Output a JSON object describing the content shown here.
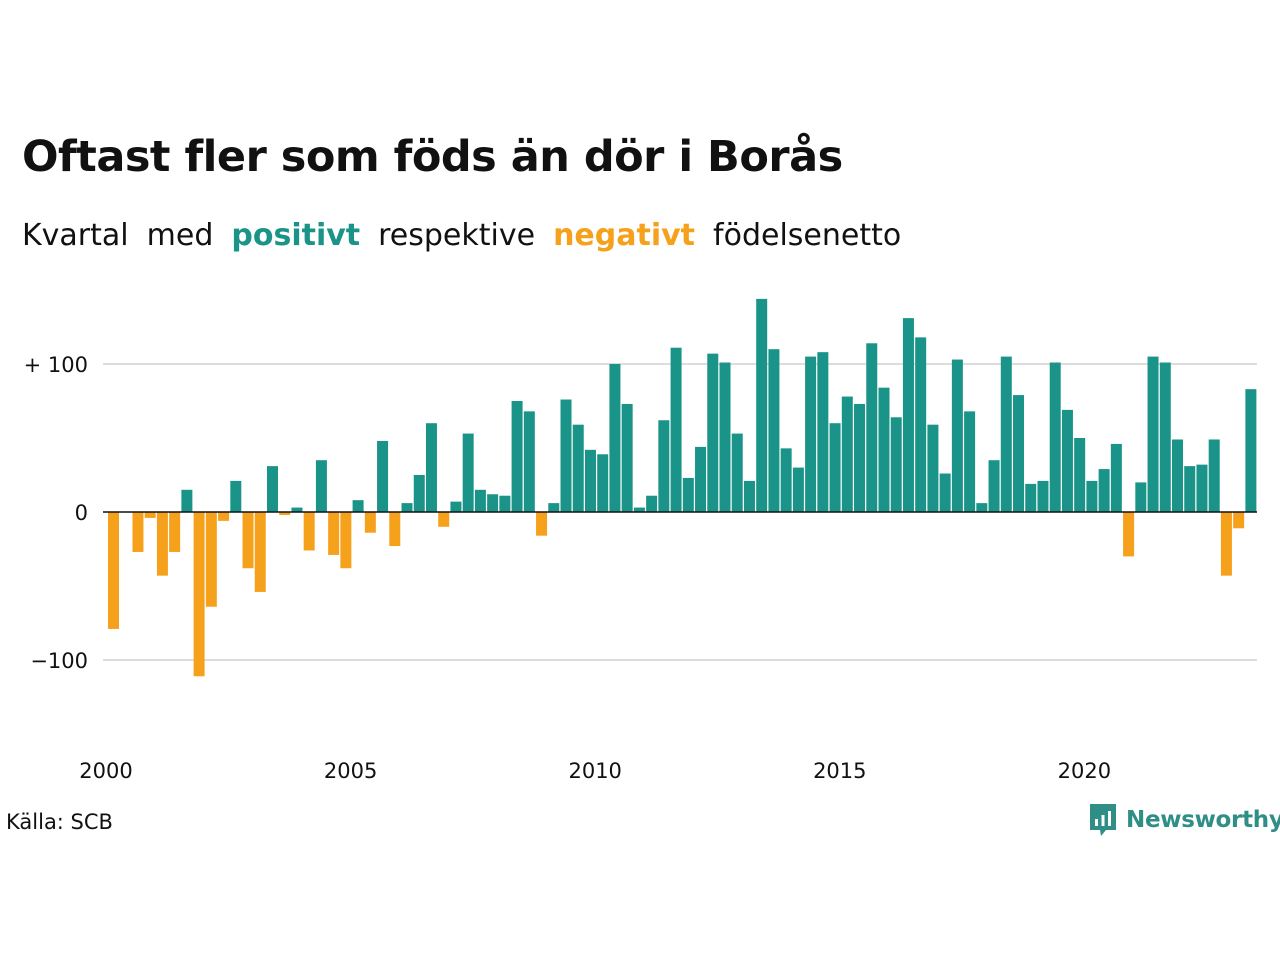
{
  "title": "Oftast fler som föds än dör i Borås",
  "subtitle": {
    "w1": "Kvartal",
    "w2": "med",
    "positive": "positivt",
    "w3": "respektive",
    "negative": "negativt",
    "w4": "födelsenetto"
  },
  "source": "Källa: SCB",
  "brand": "Newsworthy",
  "colors": {
    "positive": "#1a9488",
    "negative": "#f5a11c",
    "grid": "#dddddd",
    "baseline": "#111111"
  },
  "chart_data": {
    "type": "bar",
    "title": "Oftast fler som föds än dör i Borås",
    "xlabel": "",
    "ylabel": "",
    "ylim": [
      -150,
      150
    ],
    "grid": true,
    "x_start": "2000 Q1",
    "x_ticks": [
      "2000",
      "2005",
      "2010",
      "2015",
      "2020"
    ],
    "y_ticks": [
      {
        "value": 100,
        "label": "+ 100"
      },
      {
        "value": 0,
        "label": "0"
      },
      {
        "value": -100,
        "label": "−100"
      }
    ],
    "values": [
      -79,
      0,
      -27,
      -4,
      -43,
      -27,
      15,
      -111,
      -64,
      -6,
      21,
      -38,
      -54,
      31,
      -2,
      3,
      -26,
      35,
      -29,
      -38,
      8,
      -14,
      48,
      -23,
      6,
      25,
      60,
      -10,
      7,
      53,
      15,
      12,
      11,
      75,
      68,
      -16,
      6,
      76,
      59,
      42,
      39,
      100,
      73,
      3,
      11,
      62,
      111,
      23,
      44,
      107,
      101,
      53,
      21,
      144,
      110,
      43,
      30,
      105,
      108,
      60,
      78,
      73,
      114,
      84,
      64,
      131,
      118,
      59,
      26,
      103,
      68,
      6,
      35,
      105,
      79,
      19,
      21,
      101,
      69,
      50,
      21,
      29,
      46,
      -30,
      20,
      105,
      101,
      49,
      31,
      32,
      49,
      -43,
      -11,
      83
    ]
  }
}
